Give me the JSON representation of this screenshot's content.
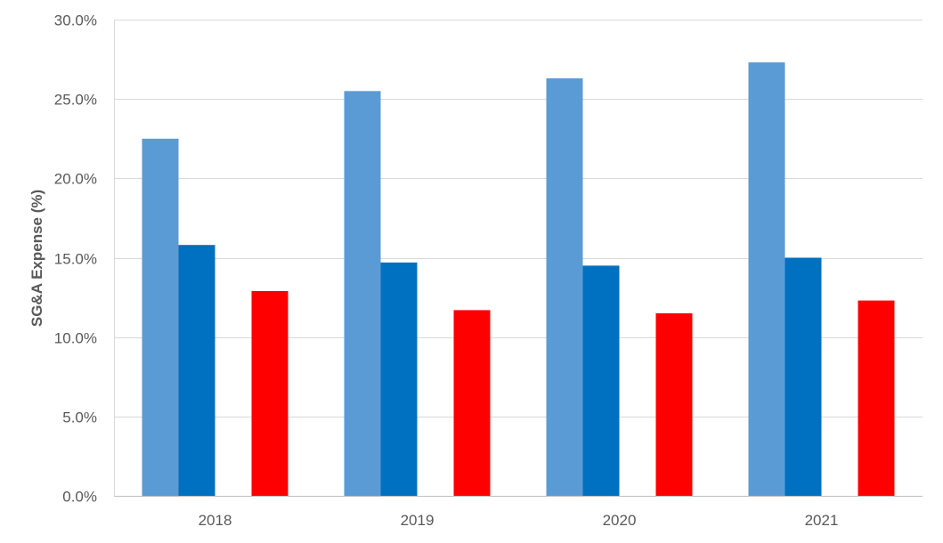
{
  "chart_data": {
    "type": "bar",
    "title": "",
    "xlabel": "",
    "ylabel": "SG&A Expense (%)",
    "categories": [
      "2018",
      "2019",
      "2020",
      "2021"
    ],
    "ylim": [
      0,
      30
    ],
    "y_ticks": [
      "0.0%",
      "5.0%",
      "10.0%",
      "15.0%",
      "20.0%",
      "25.0%",
      "30.0%"
    ],
    "y_tick_values": [
      0,
      5,
      10,
      15,
      20,
      25,
      30
    ],
    "grid": true,
    "legend": "none",
    "series": [
      {
        "color": "#5b9bd5",
        "values": [
          22.5,
          25.5,
          26.3,
          27.3
        ]
      },
      {
        "color": "#0070c0",
        "values": [
          15.8,
          14.7,
          14.5,
          15.0
        ]
      },
      {
        "color": "#ffffff",
        "values": [
          null,
          null,
          null,
          null
        ]
      },
      {
        "color": "#ff0000",
        "values": [
          12.9,
          11.7,
          11.5,
          12.3
        ]
      }
    ]
  }
}
